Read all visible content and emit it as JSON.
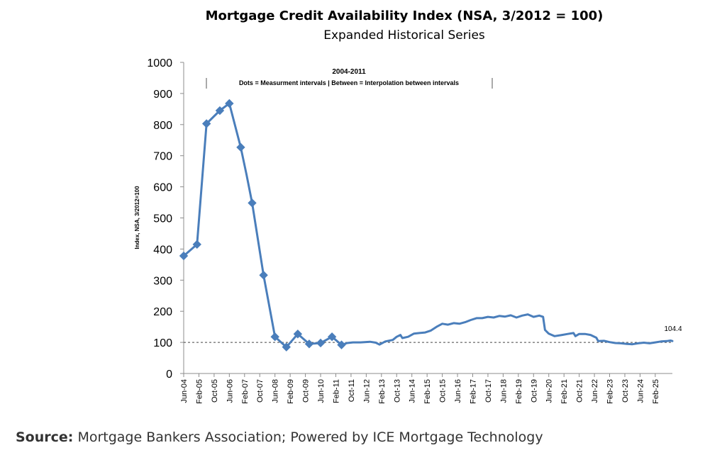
{
  "chart_data": {
    "type": "line",
    "title": "Mortgage Credit Availability Index (NSA, 3/2012 = 100)",
    "subtitle": "Expanded Historical Series",
    "ylabel": "Index, NSA, 3/2012=100",
    "xlabel": "",
    "ylim": [
      0,
      1000
    ],
    "yticks": [
      0,
      100,
      200,
      300,
      400,
      500,
      600,
      700,
      800,
      900,
      1000
    ],
    "xlim": [
      "2004-06",
      "2025-11"
    ],
    "xticks": [
      "Jun-04",
      "Feb-05",
      "Oct-05",
      "Jun-06",
      "Feb-07",
      "Oct-07",
      "Jun-08",
      "Feb-09",
      "Oct-09",
      "Jun-10",
      "Feb-11",
      "Oct-11",
      "Jun-12",
      "Feb-13",
      "Oct-13",
      "Jun-14",
      "Feb-15",
      "Oct-15",
      "Jun-16",
      "Feb-17",
      "Oct-17",
      "Jun-18",
      "Feb-19",
      "Oct-19",
      "Jun-20",
      "Feb-21",
      "Oct-21",
      "Jun-22",
      "Feb-23",
      "Oct-23",
      "Jun-24",
      "Feb-25"
    ],
    "annotation": {
      "title": "2004-2011",
      "text": "Dots = Measurment intervals  |  Between = Interpolation between intervals"
    },
    "reference_line": 100,
    "end_label": "104.4",
    "color": "#4a7ebb",
    "series": [
      {
        "measured_points": [
          [
            "2004-06",
            378
          ],
          [
            "2005-01",
            415
          ],
          [
            "2005-06",
            803
          ],
          [
            "2006-01",
            845
          ],
          [
            "2006-06",
            868
          ],
          [
            "2006-12",
            727
          ],
          [
            "2007-06",
            548
          ],
          [
            "2007-12",
            316
          ],
          [
            "2008-06",
            118
          ],
          [
            "2008-12",
            85
          ],
          [
            "2009-06",
            127
          ],
          [
            "2009-12",
            95
          ],
          [
            "2010-06",
            98
          ],
          [
            "2010-12",
            118
          ],
          [
            "2011-05",
            92
          ]
        ],
        "values": [
          [
            "2004-06",
            378
          ],
          [
            "2005-01",
            415
          ],
          [
            "2005-06",
            803
          ],
          [
            "2006-01",
            845
          ],
          [
            "2006-06",
            868
          ],
          [
            "2006-12",
            727
          ],
          [
            "2007-03",
            640
          ],
          [
            "2007-06",
            548
          ],
          [
            "2007-12",
            316
          ],
          [
            "2008-06",
            118
          ],
          [
            "2008-12",
            85
          ],
          [
            "2009-06",
            127
          ],
          [
            "2009-12",
            95
          ],
          [
            "2010-06",
            98
          ],
          [
            "2010-12",
            118
          ],
          [
            "2011-05",
            92
          ],
          [
            "2011-08",
            98
          ],
          [
            "2011-11",
            100
          ],
          [
            "2012-03",
            100
          ],
          [
            "2012-08",
            102
          ],
          [
            "2012-11",
            99
          ],
          [
            "2013-01",
            93
          ],
          [
            "2013-04",
            103
          ],
          [
            "2013-08",
            108
          ],
          [
            "2013-10",
            118
          ],
          [
            "2013-12",
            124
          ],
          [
            "2014-01",
            114
          ],
          [
            "2014-04",
            118
          ],
          [
            "2014-07",
            128
          ],
          [
            "2014-10",
            130
          ],
          [
            "2015-01",
            132
          ],
          [
            "2015-04",
            138
          ],
          [
            "2015-07",
            150
          ],
          [
            "2015-10",
            160
          ],
          [
            "2016-01",
            157
          ],
          [
            "2016-04",
            162
          ],
          [
            "2016-07",
            160
          ],
          [
            "2016-10",
            165
          ],
          [
            "2017-01",
            172
          ],
          [
            "2017-04",
            178
          ],
          [
            "2017-07",
            178
          ],
          [
            "2017-10",
            182
          ],
          [
            "2018-01",
            180
          ],
          [
            "2018-04",
            185
          ],
          [
            "2018-07",
            183
          ],
          [
            "2018-10",
            187
          ],
          [
            "2019-01",
            180
          ],
          [
            "2019-04",
            186
          ],
          [
            "2019-07",
            190
          ],
          [
            "2019-10",
            182
          ],
          [
            "2020-01",
            186
          ],
          [
            "2020-03",
            182
          ],
          [
            "2020-04",
            140
          ],
          [
            "2020-06",
            128
          ],
          [
            "2020-09",
            120
          ],
          [
            "2021-01",
            124
          ],
          [
            "2021-04",
            127
          ],
          [
            "2021-07",
            130
          ],
          [
            "2021-08",
            120
          ],
          [
            "2021-10",
            127
          ],
          [
            "2022-01",
            127
          ],
          [
            "2022-04",
            124
          ],
          [
            "2022-07",
            115
          ],
          [
            "2022-08",
            104
          ],
          [
            "2022-11",
            105
          ],
          [
            "2023-02",
            101
          ],
          [
            "2023-05",
            98
          ],
          [
            "2023-08",
            97
          ],
          [
            "2023-11",
            95
          ],
          [
            "2024-02",
            94
          ],
          [
            "2024-05",
            97
          ],
          [
            "2024-08",
            99
          ],
          [
            "2024-11",
            97
          ],
          [
            "2025-02",
            100
          ],
          [
            "2025-05",
            103
          ],
          [
            "2025-08",
            104
          ],
          [
            "2025-10",
            106
          ],
          [
            "2025-11",
            104.4
          ]
        ]
      }
    ]
  },
  "footer": {
    "source_label": "Source:",
    "source_text": "Mortgage Bankers Association; Powered by ICE Mortgage Technology"
  }
}
